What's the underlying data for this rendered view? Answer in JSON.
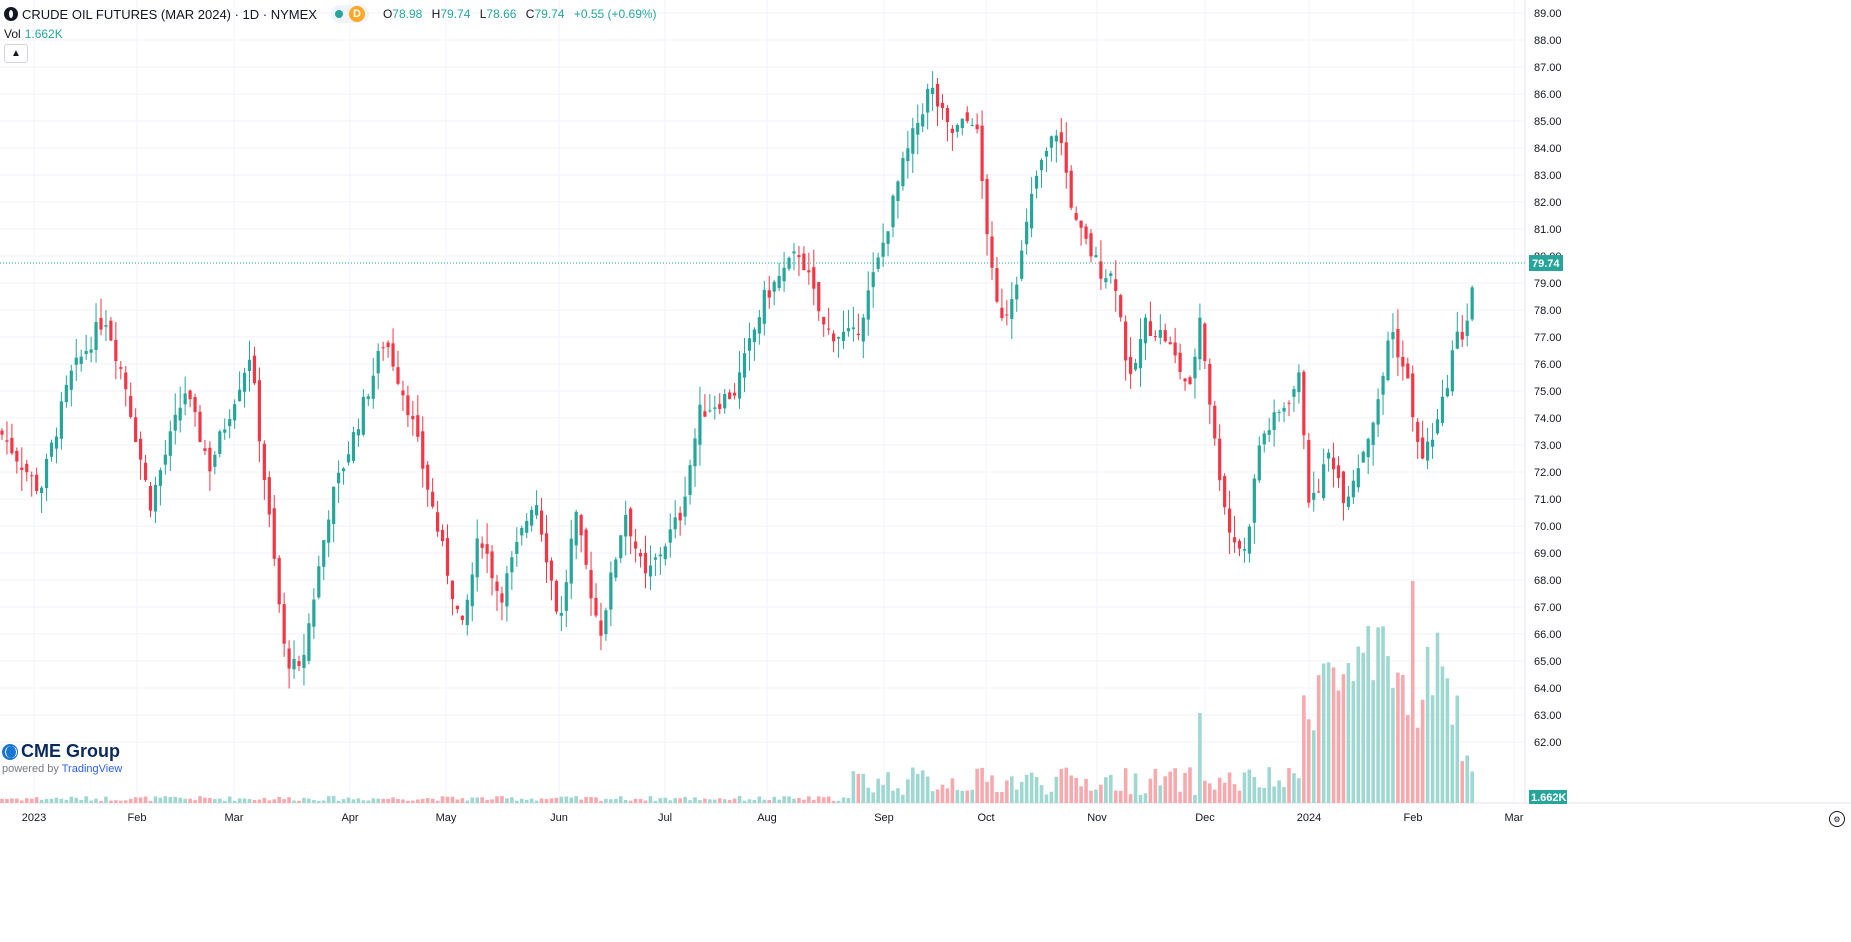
{
  "header": {
    "title": "CRUDE OIL FUTURES (MAR 2024) · 1D · NYMEX",
    "badge": "D",
    "open_label": "O",
    "open": "78.98",
    "high_label": "H",
    "high": "79.74",
    "low_label": "L",
    "low": "78.66",
    "close_label": "C",
    "close": "79.74",
    "change": "+0.55 (+0.69%)"
  },
  "volume": {
    "label": "Vol",
    "value": "1.662K"
  },
  "logo": {
    "brand": "CME Group",
    "powered_by": "powered by",
    "platform": "TradingView"
  },
  "colors": {
    "up": "#26a69a",
    "down": "#f23645",
    "vol_up": "#9fd7d1",
    "vol_down": "#f7a9ae",
    "grid": "#f0f3fa"
  },
  "icons": {
    "symbol": "symbol-icon",
    "collapse": "chevron-up-icon",
    "settings": "gear-icon"
  },
  "chart_data": {
    "type": "candlestick",
    "ylim": [
      62,
      89.5
    ],
    "y_ticks": [
      "89.00",
      "88.00",
      "87.00",
      "86.00",
      "85.00",
      "84.00",
      "83.00",
      "82.00",
      "81.00",
      "80.00",
      "79.00",
      "78.00",
      "77.00",
      "76.00",
      "75.00",
      "74.00",
      "73.00",
      "72.00",
      "71.00",
      "70.00",
      "69.00",
      "68.00",
      "67.00",
      "66.00",
      "65.00",
      "64.00",
      "63.00",
      "62.00"
    ],
    "x_ticks": [
      "2023",
      "Feb",
      "Mar",
      "Apr",
      "May",
      "Jun",
      "Jul",
      "Aug",
      "Sep",
      "Oct",
      "Nov",
      "Dec",
      "2024",
      "Feb",
      "Mar"
    ],
    "last_price_label": "79.74",
    "last_volume_label": "1.662K",
    "points": [
      [
        0,
        73.5
      ],
      [
        40,
        71.3
      ],
      [
        70,
        75.5
      ],
      [
        105,
        77.8
      ],
      [
        125,
        75.3
      ],
      [
        150,
        70.8
      ],
      [
        185,
        75.0
      ],
      [
        210,
        72.2
      ],
      [
        250,
        76.4
      ],
      [
        285,
        65.2
      ],
      [
        300,
        64.5
      ],
      [
        330,
        70.8
      ],
      [
        355,
        73.5
      ],
      [
        385,
        77.0
      ],
      [
        410,
        74.2
      ],
      [
        440,
        69.5
      ],
      [
        462,
        66.1
      ],
      [
        480,
        69.8
      ],
      [
        500,
        67.3
      ],
      [
        535,
        71.2
      ],
      [
        560,
        66.3
      ],
      [
        575,
        70.4
      ],
      [
        600,
        66.0
      ],
      [
        625,
        70.6
      ],
      [
        645,
        68.0
      ],
      [
        680,
        70.4
      ],
      [
        700,
        74.2
      ],
      [
        735,
        75.0
      ],
      [
        765,
        78.5
      ],
      [
        800,
        80.2
      ],
      [
        825,
        77.2
      ],
      [
        855,
        77.0
      ],
      [
        880,
        80.0
      ],
      [
        900,
        83.0
      ],
      [
        930,
        86.3
      ],
      [
        950,
        84.5
      ],
      [
        975,
        85.2
      ],
      [
        995,
        78.2
      ],
      [
        1005,
        77.8
      ],
      [
        1020,
        79.7
      ],
      [
        1035,
        82.8
      ],
      [
        1058,
        84.8
      ],
      [
        1075,
        81.2
      ],
      [
        1100,
        79.5
      ],
      [
        1115,
        79.2
      ],
      [
        1130,
        75.2
      ],
      [
        1145,
        77.5
      ],
      [
        1165,
        77.0
      ],
      [
        1190,
        75.0
      ],
      [
        1200,
        77.8
      ],
      [
        1215,
        73.0
      ],
      [
        1230,
        69.7
      ],
      [
        1245,
        69.0
      ],
      [
        1260,
        73.2
      ],
      [
        1280,
        74.2
      ],
      [
        1300,
        75.5
      ],
      [
        1310,
        70.5
      ],
      [
        1330,
        72.8
      ],
      [
        1345,
        71.0
      ],
      [
        1360,
        72.5
      ],
      [
        1380,
        74.7
      ],
      [
        1390,
        77.5
      ],
      [
        1410,
        75.0
      ],
      [
        1420,
        72.3
      ],
      [
        1440,
        74.0
      ],
      [
        1455,
        76.9
      ],
      [
        1465,
        77.2
      ],
      [
        1476,
        79.74
      ]
    ]
  }
}
